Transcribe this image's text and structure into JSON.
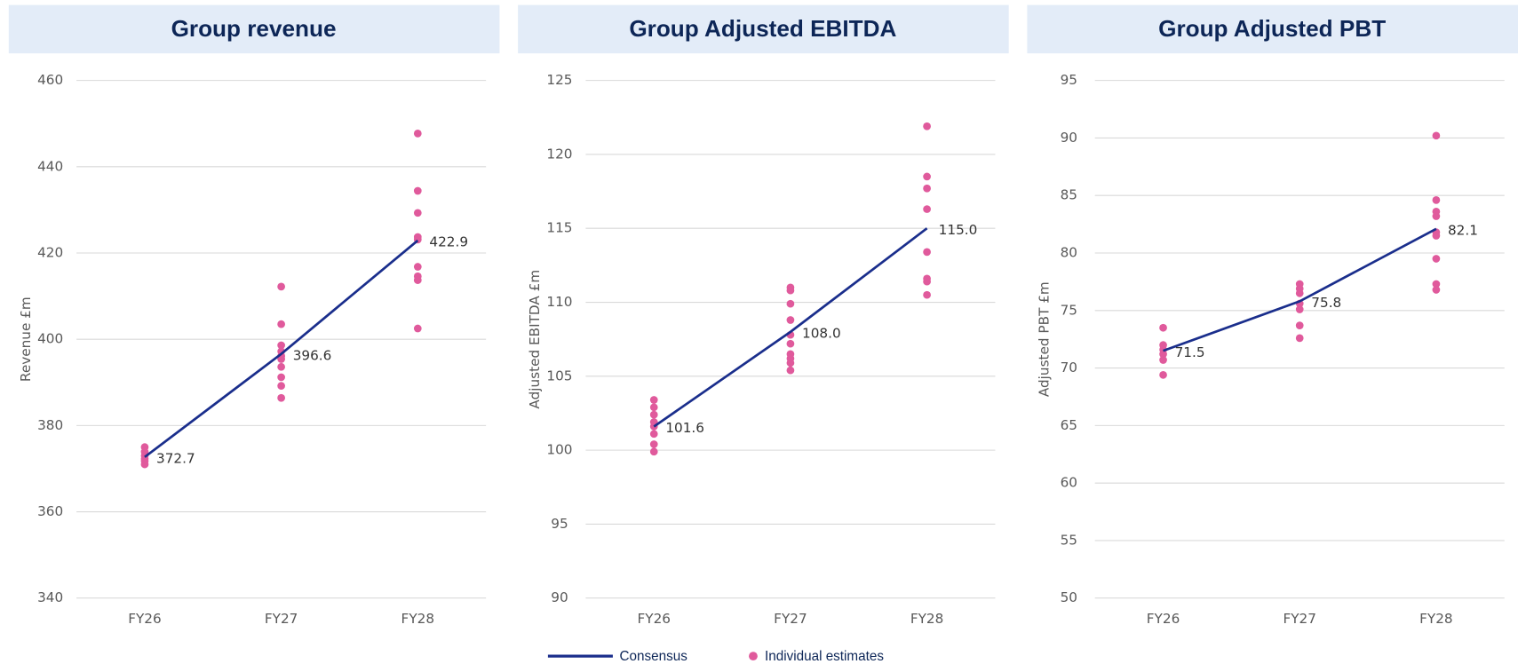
{
  "chart_data": [
    {
      "type": "line",
      "title": "Group revenue",
      "y_label": "Revenue £m",
      "categories": [
        "FY26",
        "FY27",
        "FY28"
      ],
      "ylim": [
        340,
        460
      ],
      "yticks": [
        340,
        360,
        380,
        400,
        420,
        440,
        460
      ],
      "grid": true,
      "series": [
        {
          "color": "#1a2e8c",
          "values": [
            372.7,
            396.6,
            422.9
          ],
          "value_labels": [
            "372.7",
            "396.6",
            "422.9"
          ]
        }
      ],
      "estimates": {
        "color": "#e05a9c",
        "values": [
          [
            375.0,
            373.9,
            373.0,
            372.3,
            371.8,
            371.0
          ],
          [
            412.2,
            403.5,
            398.6,
            397.2,
            396.1,
            395.4,
            393.6,
            391.2,
            389.2,
            386.4
          ],
          [
            447.7,
            434.4,
            429.3,
            423.7,
            423.1,
            416.8,
            414.6,
            413.7,
            402.5
          ]
        ]
      }
    },
    {
      "type": "line",
      "title": "Group Adjusted EBITDA",
      "y_label": "Adjusted EBITDA £m",
      "categories": [
        "FY26",
        "FY27",
        "FY28"
      ],
      "ylim": [
        90,
        125
      ],
      "yticks": [
        90,
        95,
        100,
        105,
        110,
        115,
        120,
        125
      ],
      "grid": true,
      "series": [
        {
          "color": "#1a2e8c",
          "values": [
            101.6,
            108.0,
            115.0
          ],
          "value_labels": [
            "101.6",
            "108.0",
            "115.0"
          ]
        }
      ],
      "estimates": {
        "color": "#e05a9c",
        "values": [
          [
            103.4,
            102.9,
            102.4,
            101.9,
            101.6,
            101.1,
            100.4,
            99.9
          ],
          [
            111.0,
            110.8,
            109.9,
            108.8,
            107.8,
            107.2,
            106.5,
            106.2,
            105.9,
            105.4
          ],
          [
            121.9,
            118.5,
            117.7,
            116.3,
            113.4,
            111.6,
            111.4,
            110.5
          ]
        ]
      }
    },
    {
      "type": "line",
      "title": "Group Adjusted PBT",
      "y_label": "Adjusted PBT £m",
      "categories": [
        "FY26",
        "FY27",
        "FY28"
      ],
      "ylim": [
        50,
        95
      ],
      "yticks": [
        50,
        55,
        60,
        65,
        70,
        75,
        80,
        85,
        90,
        95
      ],
      "grid": true,
      "series": [
        {
          "color": "#1a2e8c",
          "values": [
            71.5,
            75.8,
            82.1
          ],
          "value_labels": [
            "71.5",
            "75.8",
            "82.1"
          ]
        }
      ],
      "estimates": {
        "color": "#e05a9c",
        "values": [
          [
            73.5,
            72.0,
            71.6,
            71.2,
            70.7,
            69.4
          ],
          [
            77.3,
            76.9,
            76.5,
            75.6,
            75.1,
            73.7,
            72.6
          ],
          [
            90.2,
            84.6,
            83.6,
            83.2,
            81.8,
            81.5,
            79.5,
            77.3,
            76.8
          ]
        ]
      }
    }
  ],
  "legend": [
    {
      "name": "Consensus",
      "color": "#1a2e8c"
    },
    {
      "name": "Individual estimates",
      "color": "#e05a9c"
    }
  ]
}
